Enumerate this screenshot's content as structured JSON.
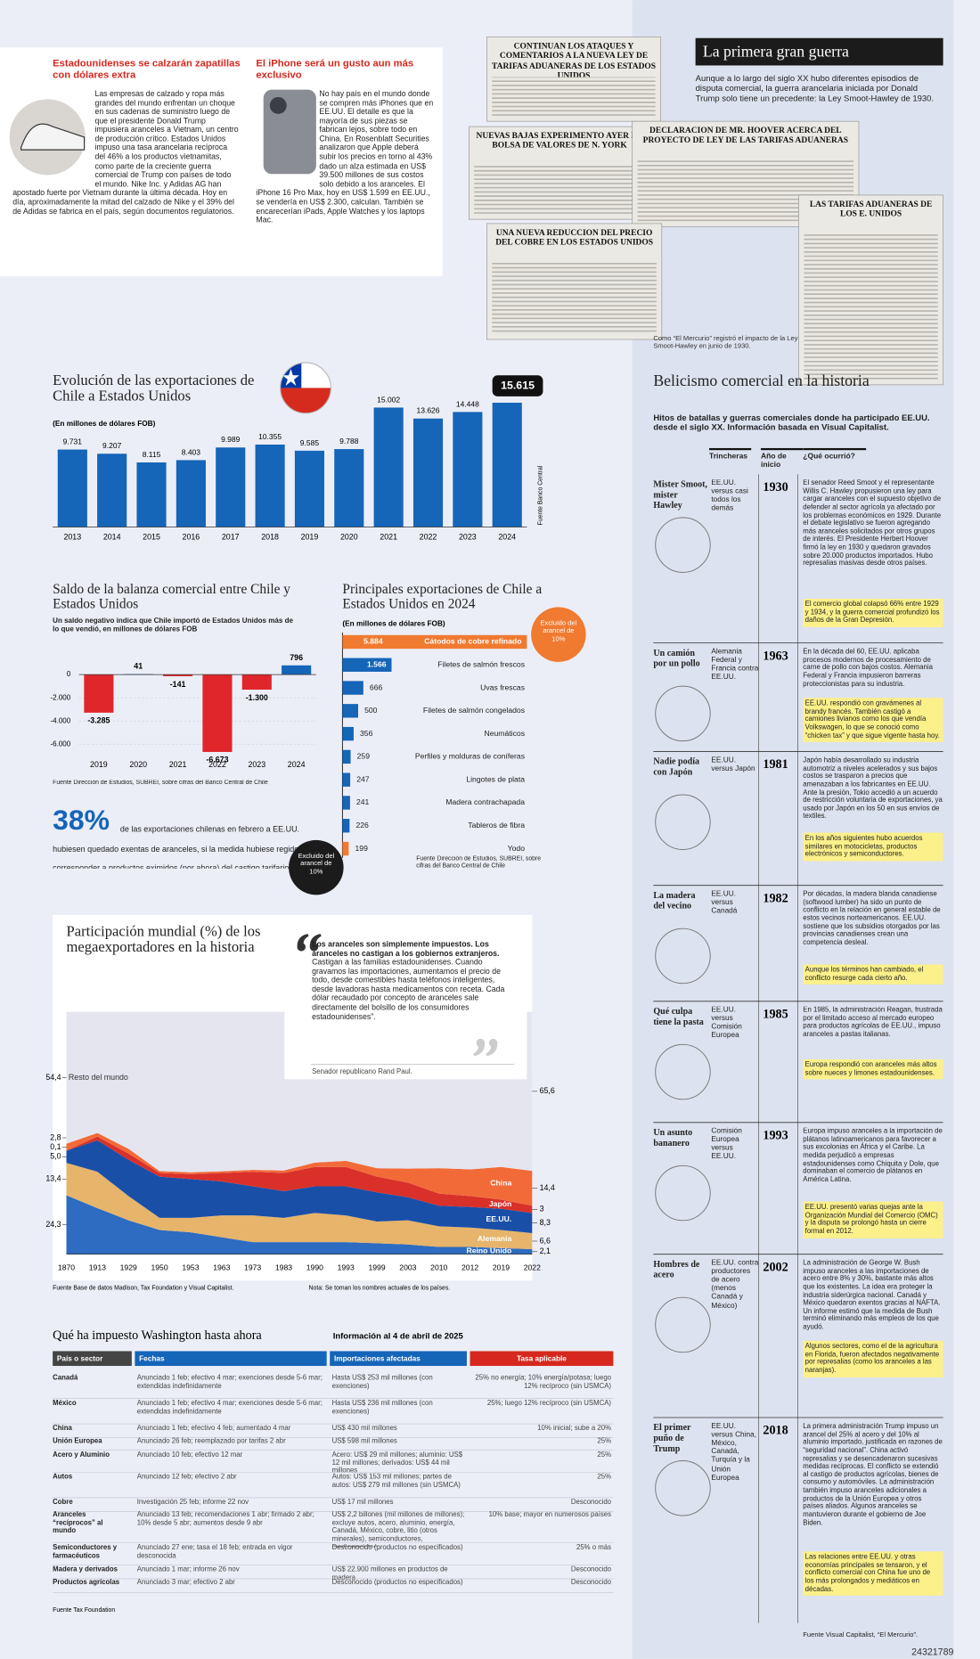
{
  "stories": [
    {
      "title": "Estadounidenses se calzarán zapatillas con dólares extra",
      "body": "Las empresas de calzado y ropa más grandes del mundo enfrentan un choque en sus cadenas de suministro luego de que el presidente Donald Trump impusiera aranceles a Vietnam, un centro de producción crítico. Estados Unidos impuso una tasa arancelaria recíproca del 46% a los productos vietnamitas, como parte de la creciente guerra comercial de Trump con países de todo el mundo. Nike Inc. y Adidas AG han apostado fuerte por Vietnam durante la última década. Hoy en día, aproximadamente la mitad del calzado de Nike y el 39% del de Adidas se fabrica en el país, según documentos regulatorios."
    },
    {
      "title": "El iPhone será un gusto aun más exclusivo",
      "body": "No hay país en el mundo donde se compren más iPhones que en EE.UU. El detalle es que la mayoría de sus piezas se fabrican lejos, sobre todo en China. En Rosenblatt Securities analizaron que Apple deberá subir los precios en torno al 43% dado un alza estimada en US$ 39.500 millones de sus costos solo debido a los aranceles. El iPhone 16 Pro Max, hoy en US$ 1.599 en EE.UU., se vendería en US$ 2.300, calculan. También se encarecerían iPads, Apple Watches y los laptops Mac."
    }
  ],
  "clippings": [
    "CONTINUAN LOS ATAQUES Y COMENTARIOS A LA NUEVA LEY DE TARIFAS ADUANERAS DE LOS ESTADOS UNIDOS",
    "NUEVAS BAJAS EXPERIMENTO AYER LA BOLSA DE VALORES DE N. YORK",
    "DECLARACION DE MR. HOOVER ACERCA DEL PROYECTO DE LEY DE LAS TARIFAS ADUANERAS",
    "UNA NUEVA REDUCCION DEL PRECIO DEL COBRE EN LOS ESTADOS UNIDOS",
    "LAS TARIFAS ADUANERAS DE LOS E. UNIDOS"
  ],
  "clipping_caption": "Como “El Mercurio” registró el impacto de la Ley Smoot-Hawley en junio de 1930.",
  "first_war": {
    "title": "La primera gran guerra",
    "intro": "Aunque a lo largo del siglo XX hubo diferentes episodios de disputa comercial, la guerra arancelaria iniciada por Donald Trump solo tiene un precedente: la Ley Smoot-Hawley de 1930."
  },
  "history": {
    "title": "Belicismo comercial en la historia",
    "subtitle": "Hitos de batallas y guerras comerciales donde ha participado EE.UU. desde el siglo XX. Información basada en Visual Capitalist.",
    "headers": [
      "Trincheras",
      "Año de inicio",
      "¿Qué ocurrió?"
    ],
    "rows": [
      {
        "name": "Mister Smoot, mister Hawley",
        "parties": "EE.UU. versus casi todos los demás",
        "year": "1930",
        "text": "El senador Reed Smoot y el representante Willis C. Hawley propusieron una ley para cargar aranceles con el supuesto objetivo de defender al sector agrícola ya afectado por los problemas económicos en 1929. Durante el debate legislativo se fueron agregando más aranceles solicitados por otros grupos de interés. El Presidente Herbert Hoover firmó la ley en 1930 y quedaron gravados sobre 20.000 productos importados. Hubo represalias masivas desde otros países.",
        "note": "El comercio global colapsó 66% entre 1929 y 1934, y la guerra comercial profundizó los daños de la Gran Depresión."
      },
      {
        "name": "Un camión por un pollo",
        "parties": "Alemania Federal y Francia contra EE.UU.",
        "year": "1963",
        "text": "En la década del 60, EE.UU. aplicaba procesos modernos de procesamiento de carne de pollo con bajos costos. Alemania Federal y Francia impusieron barreras proteccionistas para su industria.",
        "note": "EE.UU. respondió con gravámenes al brandy francés. También castigó a camiones livianos como los que vendía Volkswagen, lo que se conoció como “chicken tax” y que sigue vigente hasta hoy."
      },
      {
        "name": "Nadie podía con Japón",
        "parties": "EE.UU. versus Japón",
        "year": "1981",
        "text": "Japón había desarrollado su industria automotriz a niveles acelerados y sus bajos costos se trasparon a precios que amenazaban a los fabricantes en EE.UU. Ante la presión, Tokio accedió a un acuerdo de restricción voluntaria de exportaciones, ya usado por Japón en los 50 en sus envíos de textiles.",
        "note": "En los años siguientes hubo acuerdos similares en motocicletas, productos electrónicos y semiconductores."
      },
      {
        "name": "La madera del vecino",
        "parties": "EE.UU. versus Canadá",
        "year": "1982",
        "text": "Por décadas, la madera blanda canadiense (softwood lumber) ha sido un punto de conflicto en la relación en general estable de estos vecinos norteamericanos. EE.UU. sostiene que los subsidios otorgados por las provincias canadienses crean una competencia desleal.",
        "note": "Aunque los términos han cambiado, el conflicto resurge cada cierto año."
      },
      {
        "name": "Qué culpa tiene la pasta",
        "parties": "EE.UU. versus Comisión Europea",
        "year": "1985",
        "text": "En 1985, la administración Reagan, frustrada por el limitado acceso al mercado europeo para productos agrícolas de EE.UU., impuso aranceles a pastas italianas.",
        "note": "Europa respondió con aranceles más altos sobre nueces y limones estadounidenses."
      },
      {
        "name": "Un asunto bananero",
        "parties": "Comisión Europea versus EE.UU.",
        "year": "1993",
        "text": "Europa impuso aranceles a la importación de plátanos latinoamericanos para favorecer a sus excolonias en África y el Caribe. La medida perjudicó a empresas estadounidenses como Chiquita y Dole, que dominaban el comercio de plátanos en América Latina.",
        "note": "EE.UU. presentó varias quejas ante la Organización Mundial del Comercio (OMC) y la disputa se prolongó hasta un cierre formal en 2012."
      },
      {
        "name": "Hombres de acero",
        "parties": "EE.UU. contra productores de acero (menos Canadá y México)",
        "year": "2002",
        "text": "La administración de George W. Bush impuso aranceles a las importaciones de acero entre 8% y 30%, bastante más altos que los existentes. La idea era proteger la industria siderúrgica nacional. Canadá y México quedaron exentos gracias al NAFTA. Un informe estimó que la medida de Bush terminó eliminando más empleos de los que ayudó.",
        "note": "Algunos sectores, como el de la agricultura en Florida, fueron afectados negativamente por represalias (como los aranceles a las naranjas)."
      },
      {
        "name": "El primer puño de Trump",
        "parties": "EE.UU. versus China, México, Canadá, Turquía y la Unión Europea",
        "year": "2018",
        "text": "La primera administración Trump impuso un arancel del 25% al acero y del 10% al aluminio importado, justificada en razones de “seguridad nacional”. China activó represalias y se desencadenaron sucesivas medidas recíprocas. El conflicto se extendió al castigo de productos agrícolas, bienes de consumo y automóviles. La administración también impuso aranceles adicionales a productos de la Unión Europea y otros países aliados. Algunos aranceles se mantuvieron durante el gobierno de Joe Biden.",
        "note": "Las relaciones entre EE.UU. y otras economías principales se tensaron, y el conflicto comercial con China fue uno de los más prolongados y mediáticos en décadas."
      }
    ],
    "source": "Fuente Visual Capitalist, “El Mercurio”."
  },
  "stat": {
    "figure": "38%",
    "text": "de las exportaciones chilenas en febrero a EE.UU. hubiesen quedado exentas de aranceles, si la medida hubiese regido, por corresponder a productos eximidos (por ahora) del castigo tarifario."
  },
  "quote": {
    "bold": "Los aranceles son simplemente impuestos. Los aranceles no castigan a los gobiernos extranjeros.",
    "rest": " Castigan a las familias estadounidenses. Cuando gravamos las importaciones, aumentamos el precio de todo, desde comestibles hasta teléfonos inteligentes, desde lavadoras hasta medicamentos con receta. Cada dólar recaudado por concepto de aranceles sale directamente del bolsillo de los consumidores estadounidenses”.",
    "author": "Senador republicano Rand Paul."
  },
  "table": {
    "title": "Qué ha impuesto Washington hasta ahora",
    "info": "Información al 4 de abril de 2025",
    "headers": [
      "País o sector",
      "Fechas",
      "Importaciones afectadas",
      "Tasa aplicable"
    ],
    "rows": [
      [
        "Canadá",
        "Anunciado 1 feb; efectivo 4 mar; exenciones desde 5-6 mar; extendidas indefinidamente",
        "Hasta US$ 253 mil millones (con exenciones)",
        "25% no energía; 10% energía/potasa; luego 12% recíproco (sin USMCA)"
      ],
      [
        "México",
        "Anunciado 1 feb; efectivo 4 mar; exenciones desde 5-6 mar; extendidas indefinidamente",
        "Hasta US$ 236 mil millones (con exenciones)",
        "25%; luego 12% recíproco (sin USMCA)"
      ],
      [
        "China",
        "Anunciado 1 feb; efectivo 4 feb; aumentado 4 mar",
        "US$ 430 mil millones",
        "10% inicial; sube a 20%"
      ],
      [
        "Unión Europea",
        "Anunciado 26 feb; reemplazado por tarifas 2 abr",
        "US$ 598 mil millones",
        "25%"
      ],
      [
        "Acero y Aluminio",
        "Anunciado 10 feb; efectivo 12 mar",
        "Acero: US$ 29 mil millones; aluminio: US$ 12 mil millones; derivados: US$ 44 mil millones",
        "25%"
      ],
      [
        "Autos",
        "Anunciado 12 feb; efectivo 2 abr",
        "Autos: US$ 153 mil millones; partes de autos: US$ 279 mil millones (sin USMCA)",
        "25%"
      ],
      [
        "Cobre",
        "Investigación 25 feb; informe 22 nov",
        "US$ 17 mil millones",
        "Desconocido"
      ],
      [
        "Aranceles “recíprocos” al mundo",
        "Anunciado 13 feb; recomendaciones 1 abr; firmado 2 abr; 10% desde 5 abr; aumentos desde 9 abr",
        "US$ 2,2 billones (mil millones de millones); excluye autos, acero, aluminio, energía, Canadá, México, cobre, litio (otros minerales), semiconductores, medicamentos.",
        "10% base; mayor en numerosos países"
      ],
      [
        "Semiconductores y farmacéuticos",
        "Anunciado 27 ene; tasa el 18 feb; entrada en vigor desconocida",
        "Desconocido (productos no especificados)",
        "25% o más"
      ],
      [
        "Madera y derivados",
        "Anunciado 1 mar; informe 26 nov",
        "US$ 22.900 millones en productos de madera",
        "Desconocido"
      ],
      [
        "Productos agrícolas",
        "Anunciado 3 mar; efectivo 2 abr",
        "Desconocido (productos no especificados)",
        "Desconocido"
      ]
    ],
    "source": "Fuente Tax Foundation"
  },
  "page_id": "24321789",
  "chart_data": [
    {
      "type": "bar",
      "title": "Evolución de las exportaciones de Chile a Estados Unidos",
      "subtitle": "(En millones de dólares FOB)",
      "categories": [
        "2013",
        "2014",
        "2015",
        "2016",
        "2017",
        "2018",
        "2019",
        "2020",
        "2021",
        "2022",
        "2023",
        "2024"
      ],
      "values": [
        9731,
        9207,
        8115,
        8403,
        9989,
        10355,
        9585,
        9788,
        15002,
        13626,
        14448,
        15615
      ],
      "value_labels": [
        "9.731",
        "9.207",
        "8.115",
        "8.403",
        "9.989",
        "10.355",
        "9.585",
        "9.788",
        "15.002",
        "13.626",
        "14.448",
        "15.615"
      ],
      "color": "#1565b8",
      "source": "Fuente Banco Central"
    },
    {
      "type": "bar",
      "title": "Saldo de la balanza comercial entre Chile y Estados Unidos",
      "subtitle": "Un saldo negativo indica que Chile importó de Estados Unidos más de lo que vendió, en millones de dólares FOB",
      "categories": [
        "2019",
        "2020",
        "2021",
        "2022",
        "2023",
        "2024"
      ],
      "values": [
        -3285,
        41,
        -141,
        -6673,
        -1300,
        796
      ],
      "value_labels": [
        "-3.285",
        "41",
        "-141",
        "-6.673",
        "-1.300",
        "796"
      ],
      "ylim": [
        -7000,
        2000
      ],
      "yticks": [
        0,
        {
          "value": -2000,
          "label": "-2.000"
        },
        {
          "value": -4000,
          "label": "-4.000"
        },
        {
          "value": -6000,
          "label": "-6.000"
        }
      ],
      "color": "#1565b8",
      "negative_color": "#e0262b",
      "grid": true,
      "source": "Fuente Dirección de Estudios, SUBREI, sobre cifras del Banco Central de Chile"
    },
    {
      "type": "hbar",
      "title": "Principales exportaciones de Chile a Estados Unidos en 2024",
      "subtitle": "(En millones de dólares FOB)",
      "categories": [
        "Cátodos de cobre refinado",
        "Filetes de salmón frescos",
        "Uvas frescas",
        "Filetes de salmón congelados",
        "Neumáticos",
        "Perfiles y molduras de coníferas",
        "Lingotes de plata",
        "Madera contrachapada",
        "Tableros de fibra",
        "Yodo"
      ],
      "values": [
        5884,
        1566,
        666,
        500,
        356,
        259,
        247,
        241,
        226,
        199
      ],
      "value_labels": [
        "5.884",
        "1.566",
        "666",
        "500",
        "356",
        "259",
        "247",
        "241",
        "226",
        "199"
      ],
      "colors": [
        "#f07a30",
        "#1565b8",
        "#1565b8",
        "#1565b8",
        "#1565b8",
        "#1565b8",
        "#1565b8",
        "#1565b8",
        "#1565b8",
        "#f07a30"
      ],
      "annotations": [
        "Excluido del arancel de 10%",
        "Excluido del arancel de 10%"
      ],
      "source": "Fuente Dirección de Estudios, SUBREI, sobre cifras del Banco Central de Chile"
    },
    {
      "type": "stacked-area",
      "title": "Participación mundial (%) de los megaexportadores en la historia",
      "categories": [
        "1870",
        "1913",
        "1929",
        "1950",
        "1953",
        "1963",
        "1973",
        "1983",
        "1990",
        "1993",
        "1999",
        "2003",
        "2010",
        "2012",
        "2019",
        "2022"
      ],
      "ylim": [
        0,
        100
      ],
      "series": [
        {
          "name": "Reino Unido",
          "color": "#2d6cc0",
          "values": [
            24.3,
            19,
            14,
            10,
            9,
            7,
            5,
            5,
            5,
            5,
            4.5,
            4,
            3,
            3,
            2.5,
            2.1
          ],
          "value_labels": [
            "24,3",
            null,
            null,
            null,
            null,
            null,
            null,
            null,
            null,
            null,
            null,
            null,
            null,
            null,
            null,
            "2,1"
          ]
        },
        {
          "name": "Alemania",
          "color": "#e6b46a",
          "values": [
            13.4,
            15,
            10,
            5,
            6,
            9,
            11,
            10,
            12,
            11,
            9,
            10,
            8.5,
            8,
            7.5,
            6.6
          ],
          "value_labels": [
            "13,4",
            null,
            null,
            null,
            null,
            null,
            null,
            null,
            null,
            null,
            null,
            null,
            null,
            null,
            null,
            "6,6"
          ]
        },
        {
          "name": "EE.UU.",
          "color": "#1a4fa8",
          "values": [
            5,
            13,
            15,
            17,
            16,
            14,
            12,
            11,
            11,
            12,
            12,
            9.5,
            8.5,
            8.5,
            8.7,
            8.3
          ],
          "value_labels": [
            "5,0",
            null,
            null,
            null,
            null,
            null,
            null,
            null,
            null,
            null,
            null,
            null,
            null,
            null,
            null,
            "8,3"
          ]
        },
        {
          "name": "Japón",
          "color": "#d9302a",
          "values": [
            0.1,
            1.5,
            2.5,
            1.5,
            2,
            3.5,
            6,
            7.5,
            8,
            8,
            6.5,
            6,
            5,
            4.5,
            3.8,
            3
          ],
          "value_labels": [
            "0,1",
            null,
            null,
            null,
            null,
            null,
            null,
            null,
            null,
            null,
            null,
            null,
            null,
            null,
            null,
            "3"
          ]
        },
        {
          "name": "China",
          "color": "#f26a38",
          "values": [
            2.8,
            1.5,
            2,
            0.8,
            0.8,
            0.7,
            0.8,
            1,
            1.8,
            2.5,
            3.5,
            5.8,
            10.5,
            11,
            13.5,
            14.4
          ],
          "value_labels": [
            "2,8",
            null,
            null,
            null,
            null,
            null,
            null,
            null,
            null,
            null,
            null,
            null,
            null,
            null,
            null,
            "14,4"
          ]
        },
        {
          "name": "Resto del mundo",
          "color": "#e4e5ee",
          "values": [
            54.4,
            50,
            56.5,
            65.7,
            66.2,
            65.8,
            65.2,
            65.5,
            62.2,
            61.5,
            64.5,
            64.7,
            64.5,
            65,
            64,
            65.6
          ],
          "value_labels": [
            "54,4",
            null,
            null,
            null,
            null,
            null,
            null,
            null,
            null,
            null,
            null,
            null,
            null,
            null,
            null,
            "65,6"
          ]
        }
      ],
      "note": "Nota: Se toman los nombres actuales de los países.",
      "source": "Fuente Base de datos Madison, Tax Foundation y Visual Capitalist."
    }
  ]
}
